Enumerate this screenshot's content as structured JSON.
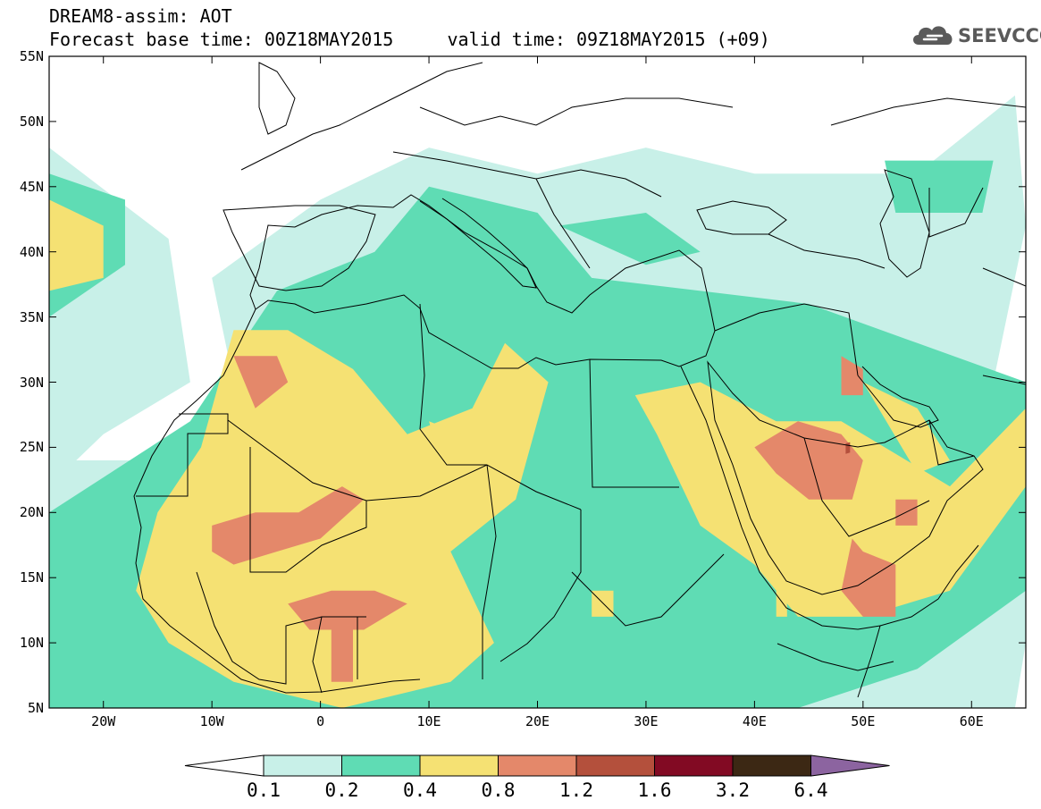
{
  "header": {
    "title_line1": "DREAM8-assim: AOT",
    "title_line2": "Forecast base time: 00Z18MAY2015     valid time: 09Z18MAY2015 (+09)"
  },
  "logo": {
    "name": "cloud-icon",
    "text": "SEEVCCC",
    "color": "#5a5a5a"
  },
  "chart_data": {
    "type": "heatmap",
    "title": "DREAM8-assim: AOT",
    "xlim": [
      -25,
      65
    ],
    "ylim": [
      5,
      55
    ],
    "x_ticks": [
      {
        "value": -20,
        "label": "20W"
      },
      {
        "value": -10,
        "label": "10W"
      },
      {
        "value": 0,
        "label": "0"
      },
      {
        "value": 10,
        "label": "10E"
      },
      {
        "value": 20,
        "label": "20E"
      },
      {
        "value": 30,
        "label": "30E"
      },
      {
        "value": 40,
        "label": "40E"
      },
      {
        "value": 50,
        "label": "50E"
      },
      {
        "value": 60,
        "label": "60E"
      }
    ],
    "y_ticks": [
      {
        "value": 55,
        "label": "55N"
      },
      {
        "value": 50,
        "label": "50N"
      },
      {
        "value": 45,
        "label": "45N"
      },
      {
        "value": 40,
        "label": "40N"
      },
      {
        "value": 35,
        "label": "35N"
      },
      {
        "value": 30,
        "label": "30N"
      },
      {
        "value": 25,
        "label": "25N"
      },
      {
        "value": 20,
        "label": "20N"
      },
      {
        "value": 15,
        "label": "15N"
      },
      {
        "value": 10,
        "label": "10N"
      },
      {
        "value": 5,
        "label": "5N"
      }
    ],
    "colorbar": {
      "levels": [
        "0.1",
        "0.2",
        "0.4",
        "0.8",
        "1.2",
        "1.6",
        "3.2",
        "6.4"
      ],
      "colors": [
        "#c8f0e8",
        "#5fdcb4",
        "#f5e173",
        "#e4886a",
        "#b4503c",
        "#820a23",
        "#3c2814"
      ],
      "under_color": "#ffffff",
      "over_color": "#8c64a0"
    },
    "fields": [
      {
        "level": 0.1,
        "polys": [
          [
            [
              -25,
              48
            ],
            [
              -14,
              41
            ],
            [
              -12,
              30
            ],
            [
              -20,
              26
            ],
            [
              -25,
              22
            ]
          ],
          [
            [
              -8,
              30
            ],
            [
              30,
              30
            ],
            [
              40,
              25
            ],
            [
              62,
              30
            ],
            [
              65,
              42
            ],
            [
              64,
              52
            ],
            [
              55,
              46
            ],
            [
              45,
              46
            ],
            [
              40,
              46
            ],
            [
              30,
              48
            ],
            [
              20,
              46
            ],
            [
              10,
              48
            ],
            [
              0,
              44
            ],
            [
              -10,
              38
            ]
          ],
          [
            [
              -25,
              24
            ],
            [
              65,
              24
            ],
            [
              65,
              10
            ],
            [
              64,
              5
            ],
            [
              -25,
              5
            ]
          ]
        ]
      },
      {
        "level": 0.2,
        "polys": [
          [
            [
              -25,
              46
            ],
            [
              -18,
              44
            ],
            [
              -18,
              39
            ],
            [
              -25,
              35
            ]
          ],
          [
            [
              -12,
              27
            ],
            [
              -4,
              37
            ],
            [
              5,
              40
            ],
            [
              10,
              45
            ],
            [
              20,
              43
            ],
            [
              25,
              38
            ],
            [
              35,
              37
            ],
            [
              45,
              36
            ],
            [
              55,
              33
            ],
            [
              65,
              30
            ],
            [
              65,
              14
            ],
            [
              55,
              8
            ],
            [
              44,
              5
            ],
            [
              -25,
              5
            ],
            [
              -25,
              20
            ]
          ],
          [
            [
              22,
              42
            ],
            [
              30,
              43
            ],
            [
              35,
              40
            ],
            [
              30,
              39
            ]
          ],
          [
            [
              52,
              47
            ],
            [
              62,
              47
            ],
            [
              61,
              43
            ],
            [
              53,
              43
            ]
          ]
        ]
      },
      {
        "level": 0.4,
        "polys": [
          [
            [
              -25,
              44
            ],
            [
              -20,
              42
            ],
            [
              -20,
              38
            ],
            [
              -25,
              37
            ]
          ],
          [
            [
              -8,
              34
            ],
            [
              -3,
              34
            ],
            [
              3,
              31
            ],
            [
              8,
              26
            ],
            [
              14,
              28
            ],
            [
              17,
              33
            ],
            [
              21,
              30
            ],
            [
              18,
              21
            ],
            [
              12,
              17
            ],
            [
              16,
              10
            ],
            [
              12,
              7
            ],
            [
              2,
              5
            ],
            [
              -8,
              7
            ],
            [
              -14,
              10
            ],
            [
              -17,
              14
            ],
            [
              -15,
              20
            ],
            [
              -11,
              25
            ]
          ],
          [
            [
              29,
              29
            ],
            [
              35,
              30
            ],
            [
              42,
              27
            ],
            [
              48,
              27
            ],
            [
              58,
              22
            ],
            [
              65,
              28
            ],
            [
              65,
              22
            ],
            [
              58,
              14
            ],
            [
              50,
              12
            ],
            [
              44,
              12
            ],
            [
              40,
              16
            ],
            [
              35,
              19
            ],
            [
              31,
              26
            ]
          ],
          [
            [
              50,
              30
            ],
            [
              55,
              28
            ],
            [
              58,
              24
            ],
            [
              55,
              23
            ]
          ],
          [
            [
              25,
              14
            ],
            [
              27,
              14
            ],
            [
              27,
              12
            ],
            [
              25,
              12
            ]
          ],
          [
            [
              42,
              14
            ],
            [
              43,
              14
            ],
            [
              43,
              12
            ],
            [
              42,
              12
            ]
          ],
          [
            [
              10,
              27
            ],
            [
              13,
              26
            ],
            [
              13,
              24
            ],
            [
              11,
              24
            ]
          ]
        ]
      },
      {
        "level": 0.8,
        "polys": [
          [
            [
              -8,
              32
            ],
            [
              -4,
              32
            ],
            [
              -3,
              30
            ],
            [
              -6,
              28
            ]
          ],
          [
            [
              -10,
              19
            ],
            [
              -6,
              20
            ],
            [
              -2,
              20
            ],
            [
              2,
              22
            ],
            [
              4,
              21
            ],
            [
              0,
              18
            ],
            [
              -4,
              17
            ],
            [
              -8,
              16
            ],
            [
              -10,
              17
            ]
          ],
          [
            [
              -3,
              13
            ],
            [
              1,
              14
            ],
            [
              5,
              14
            ],
            [
              8,
              13
            ],
            [
              4,
              11
            ],
            [
              -1,
              11
            ]
          ],
          [
            [
              1,
              11
            ],
            [
              3,
              11
            ],
            [
              3,
              7
            ],
            [
              1,
              7
            ]
          ],
          [
            [
              40,
              25
            ],
            [
              44,
              27
            ],
            [
              48,
              26
            ],
            [
              50,
              24
            ],
            [
              49,
              21
            ],
            [
              45,
              21
            ],
            [
              42,
              23
            ]
          ],
          [
            [
              49,
              18
            ],
            [
              50,
              17
            ],
            [
              53,
              16
            ],
            [
              53,
              12
            ],
            [
              50,
              12
            ],
            [
              48,
              14
            ]
          ],
          [
            [
              53,
              21
            ],
            [
              55,
              21
            ],
            [
              55,
              19
            ],
            [
              53,
              19
            ]
          ],
          [
            [
              48,
              32
            ],
            [
              50,
              31
            ],
            [
              50,
              29
            ],
            [
              48,
              29
            ]
          ]
        ]
      },
      {
        "level": 1.2,
        "polys": [
          [
            [
              48.4,
              25.3
            ],
            [
              48.8,
              25.4
            ],
            [
              48.8,
              24.6
            ],
            [
              48.4,
              24.5
            ]
          ]
        ]
      }
    ],
    "land_outline": "Africa, Arabia, Europe, Middle East coastlines and country borders"
  }
}
